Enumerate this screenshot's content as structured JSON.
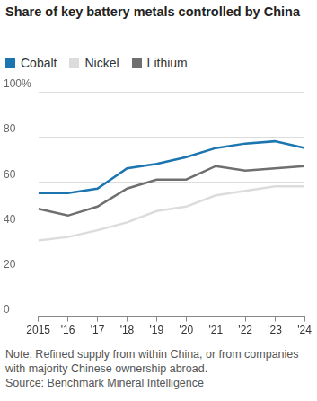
{
  "chart_data": {
    "type": "line",
    "title": "Share of key battery metals controlled by China",
    "note": "Note: Refined supply from within China, or from companies with majority Chinese ownership abroad.",
    "source": "Source: Benchmark Mineral Intelligence",
    "categories": [
      "2015",
      "'16",
      "'17",
      "'18",
      "'19",
      "'20",
      "'21",
      "'22",
      "'23",
      "'24"
    ],
    "series": [
      {
        "name": "Cobalt",
        "color": "#1a75b0",
        "values": [
          55,
          55,
          57,
          66,
          68,
          71,
          75,
          77,
          78,
          75
        ]
      },
      {
        "name": "Nickel",
        "color": "#dcdcdc",
        "values": [
          34,
          35.5,
          38.5,
          42,
          47,
          49,
          54,
          56,
          58,
          58
        ]
      },
      {
        "name": "Lithium",
        "color": "#6f6f6f",
        "values": [
          48,
          45,
          49,
          57,
          61,
          61,
          67,
          65,
          66,
          67
        ]
      }
    ],
    "ylim": [
      0,
      100
    ],
    "yticks": [
      0,
      20,
      40,
      60,
      80,
      {
        "value": 100,
        "label": "100%"
      }
    ],
    "grid": true,
    "legend": "top-left"
  }
}
